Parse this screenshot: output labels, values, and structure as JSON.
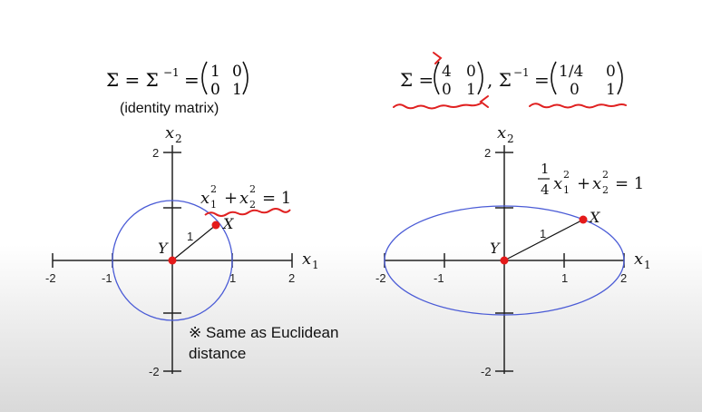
{
  "left": {
    "sigma_label": "Σ = Σ",
    "inv_sup": "−1",
    "equals": "=",
    "matrix": [
      [
        "1",
        "0"
      ],
      [
        "0",
        "1"
      ]
    ],
    "subtitle": "(identity matrix)",
    "axis_x": "x",
    "axis_x_sub": "1",
    "axis_y": "x",
    "axis_y_sub": "2",
    "ticks_x": [
      "-2",
      "-1",
      "1",
      "2"
    ],
    "ticks_y": [
      "2",
      "-2"
    ],
    "radius_label": "1",
    "point_x": "X",
    "point_y": "Y",
    "equation": {
      "a": "x",
      "a_sub": "1",
      "a_sup": "2",
      "plus": "+",
      "b": "x",
      "b_sub": "2",
      "b_sup": "2",
      "rhs": "= 1"
    },
    "note_line1": "※ Same as Euclidean",
    "note_line2": "distance"
  },
  "right": {
    "sigma_label": "Σ =",
    "matrix": [
      [
        "4",
        "0"
      ],
      [
        "0",
        "1"
      ]
    ],
    "comma_sigma": ", Σ",
    "inv_sup": "−1",
    "equals": "=",
    "inv_matrix": [
      [
        "1/4",
        "0"
      ],
      [
        "0",
        "1"
      ]
    ],
    "axis_x": "x",
    "axis_x_sub": "1",
    "axis_y": "x",
    "axis_y_sub": "2",
    "ticks_x": [
      "-2",
      "-1",
      "1",
      "2"
    ],
    "ticks_y": [
      "2",
      "-2"
    ],
    "radius_label": "1",
    "point_x": "X",
    "point_y": "Y",
    "equation": {
      "frac_num": "1",
      "frac_den": "4",
      "a": "x",
      "a_sub": "1",
      "a_sup": "2",
      "plus": "+",
      "b": "x",
      "b_sub": "2",
      "b_sup": "2",
      "rhs": "= 1"
    }
  },
  "colors": {
    "curve": "#4a5bd6",
    "point": "#e41a1a",
    "annotation": "#e02020",
    "axis": "#222222"
  }
}
